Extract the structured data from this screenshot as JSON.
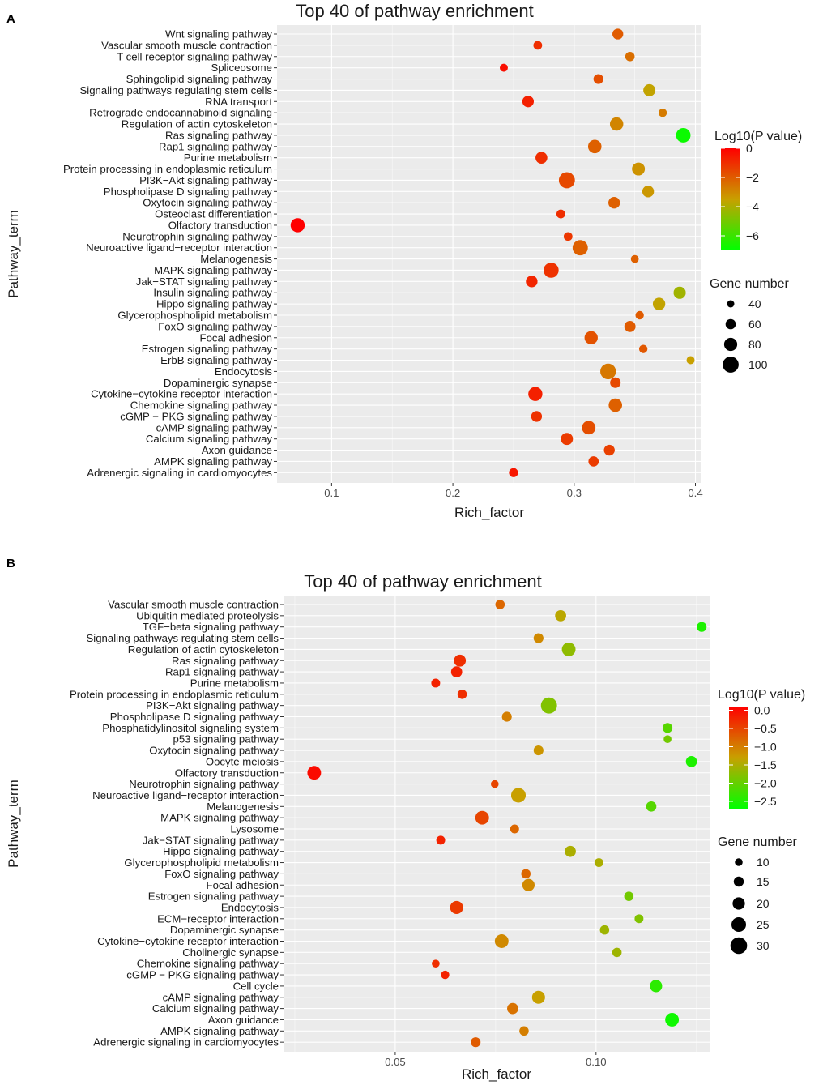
{
  "chart_data": [
    {
      "panel": "A",
      "type": "scatter",
      "title": "Top 40 of pathway enrichment",
      "xlabel": "Rich_factor",
      "ylabel": "Pathway_term",
      "xlim": [
        0.055,
        0.405
      ],
      "xticks": [
        0.1,
        0.2,
        0.3,
        0.4
      ],
      "xtick_labels": [
        "0.1",
        "0.2",
        "0.3",
        "0.4"
      ],
      "color_legend": {
        "title": "Log10(P value)",
        "min": -7,
        "max": 0,
        "ticks": [
          0,
          -2,
          -4,
          -6
        ],
        "tick_labels": [
          "0",
          "−2",
          "−4",
          "−6"
        ]
      },
      "size_legend": {
        "title": "Gene number",
        "values": [
          40,
          60,
          80,
          100
        ],
        "labels": [
          "40",
          "60",
          "80",
          "100"
        ],
        "domain": [
          30,
          100
        ]
      },
      "points": [
        {
          "term": "Wnt signaling pathway",
          "x": 0.336,
          "genes": 52,
          "log10p": -2.0
        },
        {
          "term": "Vascular smooth muscle contraction",
          "x": 0.27,
          "genes": 38,
          "log10p": -1.0
        },
        {
          "term": "T cell receptor signaling pathway",
          "x": 0.346,
          "genes": 42,
          "log10p": -2.4
        },
        {
          "term": "Spliceosome",
          "x": 0.242,
          "genes": 34,
          "log10p": -0.3
        },
        {
          "term": "Sphingolipid signaling pathway",
          "x": 0.32,
          "genes": 45,
          "log10p": -1.7
        },
        {
          "term": "Signaling pathways regulating stem cells",
          "x": 0.362,
          "genes": 62,
          "log10p": -3.6
        },
        {
          "term": "RNA transport",
          "x": 0.262,
          "genes": 57,
          "log10p": -0.7
        },
        {
          "term": "Retrograde endocannabinoid signaling",
          "x": 0.373,
          "genes": 36,
          "log10p": -2.7
        },
        {
          "term": "Regulation of actin cytoskeleton",
          "x": 0.335,
          "genes": 73,
          "log10p": -2.9
        },
        {
          "term": "Ras signaling pathway",
          "x": 0.39,
          "genes": 84,
          "log10p": -6.8
        },
        {
          "term": "Rap1 signaling pathway",
          "x": 0.317,
          "genes": 74,
          "log10p": -2.1
        },
        {
          "term": "Purine metabolism",
          "x": 0.273,
          "genes": 60,
          "log10p": -1.0
        },
        {
          "term": "Protein processing in endoplasmic reticulum",
          "x": 0.353,
          "genes": 69,
          "log10p": -3.2
        },
        {
          "term": "PI3K−Akt signaling pathway",
          "x": 0.294,
          "genes": 100,
          "log10p": -1.6
        },
        {
          "term": "Phospholipase D signaling pathway",
          "x": 0.361,
          "genes": 58,
          "log10p": -3.3
        },
        {
          "term": "Oxytocin signaling pathway",
          "x": 0.333,
          "genes": 58,
          "log10p": -2.1
        },
        {
          "term": "Osteoclast differentiation",
          "x": 0.289,
          "genes": 38,
          "log10p": -1.0
        },
        {
          "term": "Olfactory transduction",
          "x": 0.072,
          "genes": 80,
          "log10p": 0.0
        },
        {
          "term": "Neurotrophin signaling pathway",
          "x": 0.295,
          "genes": 38,
          "log10p": -1.2
        },
        {
          "term": "Neuroactive ligand−receptor interaction",
          "x": 0.305,
          "genes": 92,
          "log10p": -2.1
        },
        {
          "term": "Melanogenesis",
          "x": 0.35,
          "genes": 33,
          "log10p": -2.1
        },
        {
          "term": "MAPK signaling pathway",
          "x": 0.281,
          "genes": 90,
          "log10p": -1.1
        },
        {
          "term": "Jak−STAT signaling pathway",
          "x": 0.265,
          "genes": 58,
          "log10p": -0.8
        },
        {
          "term": "Insulin signaling pathway",
          "x": 0.387,
          "genes": 63,
          "log10p": -4.2
        },
        {
          "term": "Hippo signaling pathway",
          "x": 0.37,
          "genes": 65,
          "log10p": -3.6
        },
        {
          "term": "Glycerophospholipid metabolism",
          "x": 0.354,
          "genes": 36,
          "log10p": -2.0
        },
        {
          "term": "FoxO signaling pathway",
          "x": 0.346,
          "genes": 55,
          "log10p": -2.0
        },
        {
          "term": "Focal adhesion",
          "x": 0.314,
          "genes": 72,
          "log10p": -1.8
        },
        {
          "term": "Estrogen signaling pathway",
          "x": 0.357,
          "genes": 36,
          "log10p": -1.9
        },
        {
          "term": "ErbB signaling pathway",
          "x": 0.396,
          "genes": 34,
          "log10p": -3.5
        },
        {
          "term": "Endocytosis",
          "x": 0.328,
          "genes": 96,
          "log10p": -2.6
        },
        {
          "term": "Dopaminergic synapse",
          "x": 0.334,
          "genes": 50,
          "log10p": -1.6
        },
        {
          "term": "Cytokine−cytokine receptor interaction",
          "x": 0.268,
          "genes": 80,
          "log10p": -0.7
        },
        {
          "term": "Chemokine signaling pathway",
          "x": 0.334,
          "genes": 74,
          "log10p": -2.1
        },
        {
          "term": "cGMP − PKG signaling pathway",
          "x": 0.269,
          "genes": 52,
          "log10p": -1.1
        },
        {
          "term": "cAMP signaling pathway",
          "x": 0.312,
          "genes": 75,
          "log10p": -1.7
        },
        {
          "term": "Calcium signaling pathway",
          "x": 0.294,
          "genes": 62,
          "log10p": -1.3
        },
        {
          "term": "Axon guidance",
          "x": 0.329,
          "genes": 52,
          "log10p": -1.4
        },
        {
          "term": "AMPK signaling pathway",
          "x": 0.316,
          "genes": 48,
          "log10p": -1.3
        },
        {
          "term": "Adrenergic signaling in cardiomyocytes",
          "x": 0.25,
          "genes": 40,
          "log10p": -0.5
        }
      ]
    },
    {
      "panel": "B",
      "type": "scatter",
      "title": "Top 40 of pathway enrichment",
      "xlabel": "Rich_factor",
      "ylabel": "Pathway_term",
      "xscale": "log",
      "xlim": [
        0.034,
        0.148
      ],
      "xticks": [
        0.05,
        0.1
      ],
      "xtick_labels": [
        "0.05",
        "0.10"
      ],
      "color_legend": {
        "title": "Log10(P value)",
        "min": -2.7,
        "max": 0.1,
        "ticks": [
          0.0,
          -0.5,
          -1.0,
          -1.5,
          -2.0,
          -2.5
        ],
        "tick_labels": [
          "0.0",
          "−0.5",
          "−1.0",
          "−1.5",
          "−2.0",
          "−2.5"
        ]
      },
      "size_legend": {
        "title": "Gene number",
        "values": [
          10,
          15,
          20,
          25,
          30
        ],
        "labels": [
          "10",
          "15",
          "20",
          "25",
          "30"
        ],
        "domain": [
          8,
          32
        ]
      },
      "points": [
        {
          "term": "Vascular smooth muscle contraction",
          "x": 0.0718,
          "genes": 11,
          "log10p": -0.8
        },
        {
          "term": "Ubiquitin mediated proteolysis",
          "x": 0.0885,
          "genes": 15,
          "log10p": -1.4
        },
        {
          "term": "TGF−beta signaling pathway",
          "x": 0.144,
          "genes": 12,
          "log10p": -2.5
        },
        {
          "term": "Signaling pathways regulating stem cells",
          "x": 0.082,
          "genes": 12,
          "log10p": -1.1
        },
        {
          "term": "Regulation of actin cytoskeleton",
          "x": 0.091,
          "genes": 22,
          "log10p": -1.7
        },
        {
          "term": "Ras signaling pathway",
          "x": 0.0625,
          "genes": 17,
          "log10p": -0.3
        },
        {
          "term": "Rap1 signaling pathway",
          "x": 0.0618,
          "genes": 15,
          "log10p": -0.2
        },
        {
          "term": "Purine metabolism",
          "x": 0.0575,
          "genes": 10,
          "log10p": -0.2
        },
        {
          "term": "Protein processing in endoplasmic reticulum",
          "x": 0.063,
          "genes": 11,
          "log10p": -0.3
        },
        {
          "term": "PI3K−Akt signaling pathway",
          "x": 0.085,
          "genes": 30,
          "log10p": -1.8
        },
        {
          "term": "Phospholipase D signaling pathway",
          "x": 0.0735,
          "genes": 12,
          "log10p": -1.0
        },
        {
          "term": "Phosphatidylinositol signaling system",
          "x": 0.128,
          "genes": 12,
          "log10p": -2.1
        },
        {
          "term": "p53 signaling pathway",
          "x": 0.128,
          "genes": 8,
          "log10p": -1.9
        },
        {
          "term": "Oxytocin signaling pathway",
          "x": 0.082,
          "genes": 12,
          "log10p": -1.2
        },
        {
          "term": "Oocyte meiosis",
          "x": 0.139,
          "genes": 15,
          "log10p": -2.5
        },
        {
          "term": "Olfactory transduction",
          "x": 0.0378,
          "genes": 22,
          "log10p": 0.0
        },
        {
          "term": "Neurotrophin signaling pathway",
          "x": 0.0705,
          "genes": 8,
          "log10p": -0.5
        },
        {
          "term": "Neuroactive ligand−receptor interaction",
          "x": 0.0765,
          "genes": 25,
          "log10p": -1.3
        },
        {
          "term": "Melanogenesis",
          "x": 0.121,
          "genes": 13,
          "log10p": -2.1
        },
        {
          "term": "MAPK signaling pathway",
          "x": 0.0675,
          "genes": 22,
          "log10p": -0.5
        },
        {
          "term": "Lysosome",
          "x": 0.0755,
          "genes": 10,
          "log10p": -0.8
        },
        {
          "term": "Jak−STAT signaling pathway",
          "x": 0.0585,
          "genes": 10,
          "log10p": -0.2
        },
        {
          "term": "Hippo signaling pathway",
          "x": 0.0915,
          "genes": 15,
          "log10p": -1.5
        },
        {
          "term": "Glycerophospholipid metabolism",
          "x": 0.101,
          "genes": 10,
          "log10p": -1.5
        },
        {
          "term": "FoxO signaling pathway",
          "x": 0.0785,
          "genes": 11,
          "log10p": -0.8
        },
        {
          "term": "Focal adhesion",
          "x": 0.0792,
          "genes": 18,
          "log10p": -1.1
        },
        {
          "term": "Estrogen signaling pathway",
          "x": 0.112,
          "genes": 11,
          "log10p": -1.9
        },
        {
          "term": "Endocytosis",
          "x": 0.0618,
          "genes": 20,
          "log10p": -0.4
        },
        {
          "term": "ECM−receptor interaction",
          "x": 0.116,
          "genes": 10,
          "log10p": -1.8
        },
        {
          "term": "Dopaminergic synapse",
          "x": 0.103,
          "genes": 11,
          "log10p": -1.6
        },
        {
          "term": "Cytokine−cytokine receptor interaction",
          "x": 0.0722,
          "genes": 22,
          "log10p": -1.1
        },
        {
          "term": "Cholinergic synapse",
          "x": 0.1075,
          "genes": 11,
          "log10p": -1.6
        },
        {
          "term": "Chemokine signaling pathway",
          "x": 0.0575,
          "genes": 8,
          "log10p": -0.3
        },
        {
          "term": "cGMP − PKG signaling pathway",
          "x": 0.0594,
          "genes": 9,
          "log10p": -0.2
        },
        {
          "term": "Cell cycle",
          "x": 0.123,
          "genes": 18,
          "log10p": -2.4
        },
        {
          "term": "cAMP signaling pathway",
          "x": 0.082,
          "genes": 20,
          "log10p": -1.3
        },
        {
          "term": "Calcium signaling pathway",
          "x": 0.075,
          "genes": 15,
          "log10p": -0.9
        },
        {
          "term": "Axon guidance",
          "x": 0.13,
          "genes": 22,
          "log10p": -2.6
        },
        {
          "term": "AMPK signaling pathway",
          "x": 0.078,
          "genes": 11,
          "log10p": -1.0
        },
        {
          "term": "Adrenergic signaling in cardiomyocytes",
          "x": 0.066,
          "genes": 12,
          "log10p": -0.7
        }
      ]
    }
  ]
}
